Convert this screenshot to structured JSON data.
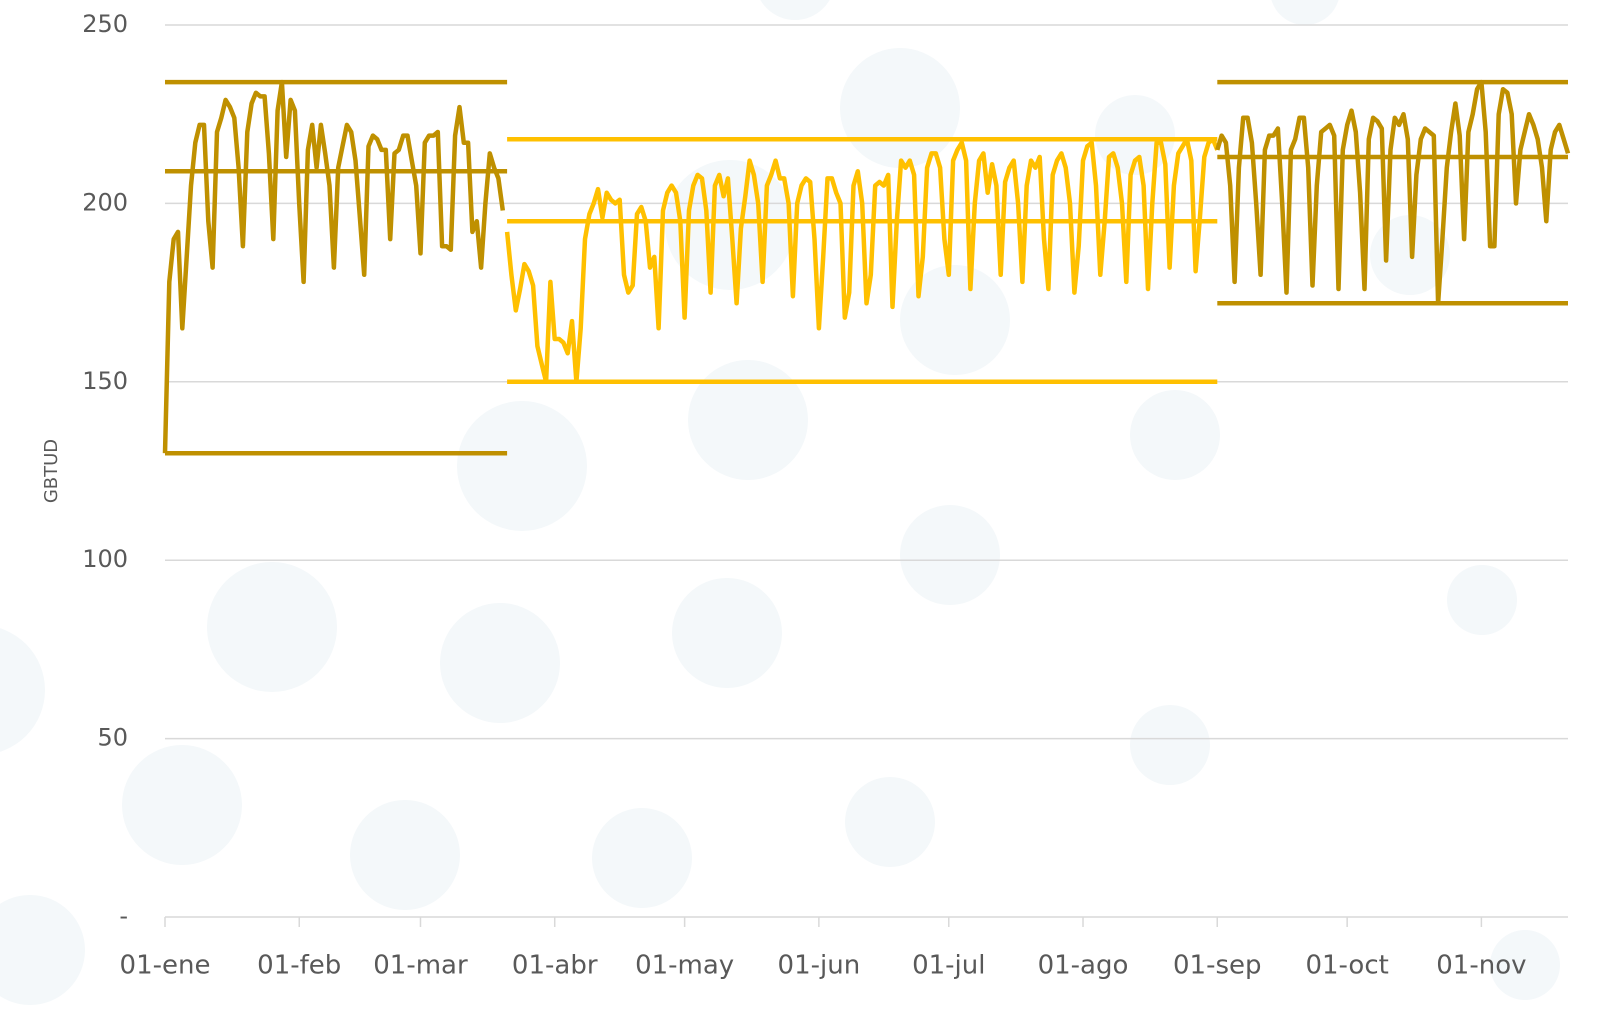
{
  "chart_data": {
    "type": "line",
    "y_label": "GBTUD",
    "xlim": [
      0,
      324
    ],
    "ylim": [
      0,
      250
    ],
    "xticks": [
      {
        "value": 0,
        "label": "01-ene"
      },
      {
        "value": 31,
        "label": "01-feb"
      },
      {
        "value": 59,
        "label": "01-mar"
      },
      {
        "value": 90,
        "label": "01-abr"
      },
      {
        "value": 120,
        "label": "01-may"
      },
      {
        "value": 151,
        "label": "01-jun"
      },
      {
        "value": 181,
        "label": "01-jul"
      },
      {
        "value": 212,
        "label": "01-ago"
      },
      {
        "value": 243,
        "label": "01-sep"
      },
      {
        "value": 273,
        "label": "01-oct"
      },
      {
        "value": 304,
        "label": "01-nov"
      }
    ],
    "yticks": [
      {
        "value": 0,
        "label": "-"
      },
      50,
      100,
      150,
      200,
      250
    ],
    "grid": true,
    "series": [
      {
        "color": "#bf9000",
        "x": [
          0,
          1,
          2,
          3,
          4,
          5,
          6,
          7,
          8,
          9,
          10,
          11,
          12,
          13,
          14,
          15,
          16,
          17,
          18,
          19,
          20,
          21,
          22,
          23,
          24,
          25,
          26,
          27,
          28,
          29,
          30,
          31,
          32,
          33,
          34,
          35,
          36,
          37,
          38,
          39,
          40,
          41,
          42,
          43,
          44,
          45,
          46,
          47,
          48,
          49,
          50,
          51,
          52,
          53,
          54,
          55,
          56,
          57,
          58,
          59,
          60,
          61,
          62,
          63,
          64,
          65,
          66,
          67,
          68,
          69,
          70,
          71,
          72,
          73,
          74,
          75,
          76,
          77,
          78
        ],
        "values": [
          130,
          178,
          190,
          192,
          165,
          185,
          205,
          217,
          222,
          222,
          195,
          182,
          220,
          224,
          229,
          227,
          224,
          210,
          188,
          220,
          228,
          231,
          230,
          230,
          214,
          190,
          226,
          234,
          213,
          229,
          226,
          200,
          178,
          215,
          222,
          210,
          222,
          214,
          205,
          182,
          210,
          216,
          222,
          220,
          212,
          196,
          180,
          216,
          219,
          218,
          215,
          215,
          190,
          214,
          215,
          219,
          219,
          212,
          205,
          186,
          217,
          219,
          219,
          220,
          188,
          188,
          187,
          219,
          227,
          217,
          217,
          192,
          195,
          182,
          200,
          214,
          210,
          207,
          198
        ]
      },
      {
        "color": "#ffc000",
        "x": [
          79,
          80,
          81,
          82,
          83,
          84,
          85,
          86,
          87,
          88,
          89,
          90,
          91,
          92,
          93,
          94,
          95,
          96,
          97,
          98,
          99,
          100,
          101,
          102,
          103,
          104,
          105,
          106,
          107,
          108,
          109,
          110,
          111,
          112,
          113,
          114,
          115,
          116,
          117,
          118,
          119,
          120,
          121,
          122,
          123,
          124,
          125,
          126,
          127,
          128,
          129,
          130,
          131,
          132,
          133,
          134,
          135,
          136,
          137,
          138,
          139,
          140,
          141,
          142,
          143,
          144,
          145,
          146,
          147,
          148,
          149,
          150,
          151,
          152,
          153,
          154,
          155,
          156,
          157,
          158,
          159,
          160,
          161,
          162,
          163,
          164,
          165,
          166,
          167,
          168,
          169,
          170,
          171,
          172,
          173,
          174,
          175,
          176,
          177,
          178,
          179,
          180,
          181,
          182,
          183,
          184,
          185,
          186,
          187,
          188,
          189,
          190,
          191,
          192,
          193,
          194,
          195,
          196,
          197,
          198,
          199,
          200,
          201,
          202,
          203,
          204,
          205,
          206,
          207,
          208,
          209,
          210,
          211,
          212,
          213,
          214,
          215,
          216,
          217,
          218,
          219,
          220,
          221,
          222,
          223,
          224,
          225,
          226,
          227,
          228,
          229,
          230,
          231,
          232,
          233,
          234,
          235,
          236,
          237,
          238,
          239,
          240,
          241,
          242,
          243
        ],
        "values": [
          192,
          180,
          170,
          176,
          183,
          181,
          177,
          160,
          155,
          150,
          178,
          162,
          162,
          161,
          158,
          167,
          150,
          165,
          190,
          197,
          200,
          204,
          196,
          203,
          201,
          200,
          201,
          180,
          175,
          177,
          197,
          199,
          195,
          182,
          185,
          165,
          198,
          203,
          205,
          203,
          195,
          168,
          198,
          205,
          208,
          207,
          198,
          175,
          205,
          208,
          202,
          207,
          190,
          172,
          193,
          202,
          212,
          208,
          200,
          178,
          205,
          208,
          212,
          207,
          207,
          200,
          174,
          200,
          205,
          207,
          206,
          190,
          165,
          185,
          207,
          207,
          203,
          200,
          168,
          175,
          205,
          209,
          200,
          172,
          180,
          205,
          206,
          205,
          208,
          171,
          195,
          212,
          210,
          212,
          208,
          174,
          185,
          210,
          214,
          214,
          210,
          190,
          180,
          212,
          215,
          217,
          212,
          176,
          200,
          212,
          214,
          203,
          211,
          205,
          180,
          206,
          210,
          212,
          200,
          178,
          205,
          212,
          210,
          213,
          190,
          176,
          208,
          212,
          214,
          210,
          200,
          175,
          188,
          212,
          216,
          217,
          205,
          180,
          195,
          213,
          214,
          210,
          200,
          178,
          208,
          212,
          213,
          205,
          176,
          200,
          217,
          217,
          211,
          182,
          205,
          214,
          216,
          218,
          212,
          181,
          196,
          213,
          217,
          218,
          215
        ]
      },
      {
        "color": "#bf9000",
        "x": [
          243,
          244,
          245,
          246,
          247,
          248,
          249,
          250,
          251,
          252,
          253,
          254,
          255,
          256,
          257,
          258,
          259,
          260,
          261,
          262,
          263,
          264,
          265,
          266,
          267,
          268,
          269,
          270,
          271,
          272,
          273,
          274,
          275,
          276,
          277,
          278,
          279,
          280,
          281,
          282,
          283,
          284,
          285,
          286,
          287,
          288,
          289,
          290,
          291,
          292,
          293,
          294,
          295,
          296,
          297,
          298,
          299,
          300,
          301,
          302,
          303,
          304,
          305,
          306,
          307,
          308,
          309,
          310,
          311,
          312,
          313,
          314,
          315,
          316,
          317,
          318,
          319,
          320,
          321,
          322,
          323,
          324
        ],
        "values": [
          215,
          219,
          217,
          205,
          178,
          210,
          224,
          224,
          217,
          200,
          180,
          215,
          219,
          219,
          221,
          200,
          175,
          215,
          218,
          224,
          224,
          210,
          177,
          205,
          220,
          221,
          222,
          219,
          176,
          215,
          222,
          226,
          220,
          203,
          176,
          218,
          224,
          223,
          221,
          184,
          215,
          224,
          222,
          225,
          218,
          185,
          208,
          218,
          221,
          220,
          219,
          172,
          190,
          210,
          220,
          228,
          219,
          190,
          220,
          225,
          232,
          234,
          220,
          188,
          188,
          225,
          232,
          231,
          225,
          200,
          215,
          220,
          225,
          222,
          218,
          210,
          195,
          215,
          220,
          222,
          218,
          214
        ]
      },
      {
        "color": "#bf9000",
        "x": [
          0,
          79
        ],
        "values": [
          234,
          234
        ]
      },
      {
        "color": "#bf9000",
        "x": [
          0,
          79
        ],
        "values": [
          209,
          209
        ]
      },
      {
        "color": "#bf9000",
        "x": [
          0,
          79
        ],
        "values": [
          130,
          130
        ]
      },
      {
        "color": "#ffc000",
        "x": [
          79,
          243
        ],
        "values": [
          218,
          218
        ]
      },
      {
        "color": "#ffc000",
        "x": [
          79,
          243
        ],
        "values": [
          195,
          195
        ]
      },
      {
        "color": "#ffc000",
        "x": [
          79,
          243
        ],
        "values": [
          150,
          150
        ]
      },
      {
        "color": "#bf9000",
        "x": [
          243,
          324
        ],
        "values": [
          234,
          234
        ]
      },
      {
        "color": "#bf9000",
        "x": [
          243,
          324
        ],
        "values": [
          213,
          213
        ]
      },
      {
        "color": "#bf9000",
        "x": [
          243,
          324
        ],
        "values": [
          172,
          172
        ]
      }
    ]
  }
}
